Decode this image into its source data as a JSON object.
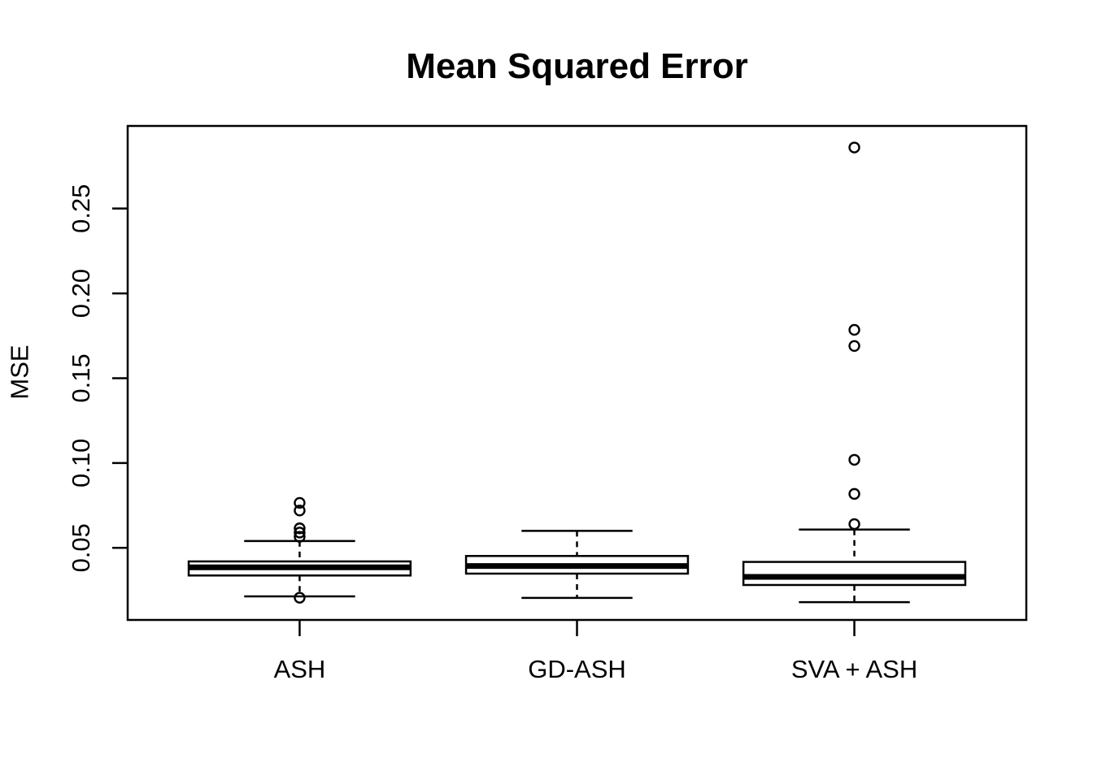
{
  "page": {
    "background": "#ffffff"
  },
  "chart_data": {
    "type": "boxplot",
    "title": "Mean Squared Error",
    "ylabel": "MSE",
    "xlabel": "",
    "grid": false,
    "legend": "none",
    "categories": [
      "ASH",
      "GD-ASH",
      "SVA + ASH"
    ],
    "yticks": [
      0.05,
      0.1,
      0.15,
      0.2,
      0.25
    ],
    "ytick_labels": [
      "0.05",
      "0.10",
      "0.15",
      "0.20",
      "0.25"
    ],
    "ylim": [
      0.0075,
      0.2987
    ],
    "xlim": [
      0.38,
      3.62
    ],
    "box_width_units": 0.8,
    "whisker_cap_width_units": 0.4,
    "colors": {
      "stroke": "#000000",
      "box_fill": "#ffffff",
      "background": "#ffffff"
    },
    "series": [
      {
        "name": "ASH",
        "x": 1,
        "whisker_low": 0.0214,
        "q1": 0.0337,
        "median": 0.0385,
        "q3": 0.042,
        "whisker_high": 0.054,
        "outliers": [
          0.0765,
          0.072,
          0.0615,
          0.059,
          0.0565,
          0.0206
        ]
      },
      {
        "name": "GD-ASH",
        "x": 2,
        "whisker_low": 0.0205,
        "q1": 0.0348,
        "median": 0.0393,
        "q3": 0.0452,
        "whisker_high": 0.06,
        "outliers": []
      },
      {
        "name": "SVA + ASH",
        "x": 3,
        "whisker_low": 0.018,
        "q1": 0.0281,
        "median": 0.0329,
        "q3": 0.0417,
        "whisker_high": 0.0608,
        "outliers": [
          0.286,
          0.1785,
          0.169,
          0.1019,
          0.0818,
          0.064
        ]
      }
    ]
  }
}
